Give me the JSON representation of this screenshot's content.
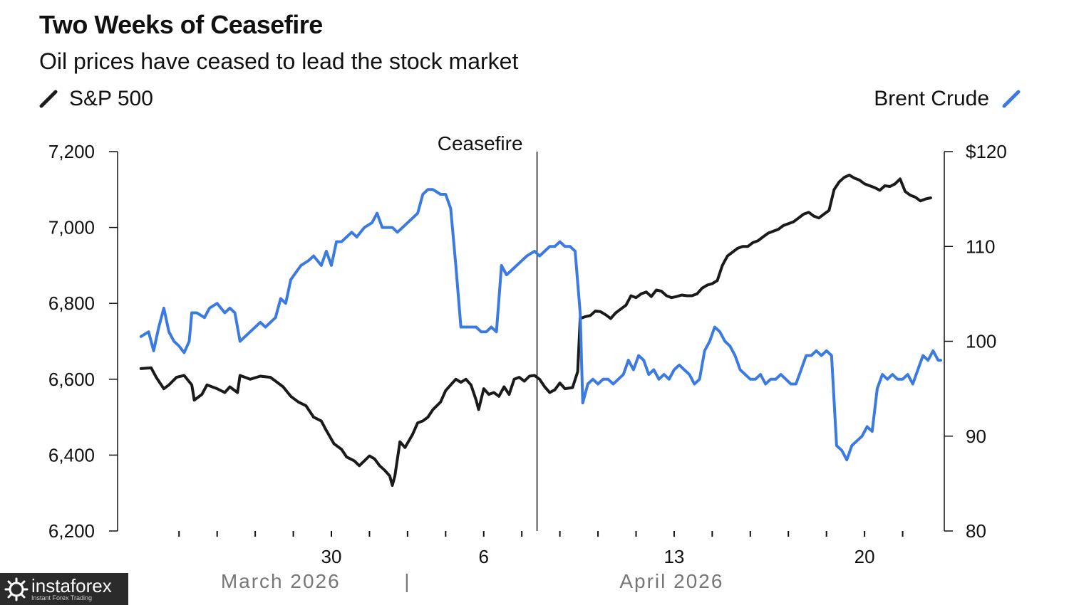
{
  "chart_data": {
    "type": "line",
    "title": "Two Weeks of Ceasefire",
    "subtitle": "Oil prices have ceased to lead the stock market",
    "annotation": "Ceasefire",
    "x_range": [
      0,
      32
    ],
    "annotation_x": 16.1,
    "left_axis": {
      "ylim": [
        6200,
        7200
      ],
      "ticks": [
        7200,
        7000,
        6800,
        6600,
        6400,
        6200
      ],
      "tick_labels": [
        "7,200",
        "7,000",
        "6,800",
        "6,600",
        "6,400",
        "6,200"
      ]
    },
    "right_axis": {
      "ylim": [
        80,
        120
      ],
      "ticks": [
        120,
        110,
        100,
        90,
        80
      ],
      "tick_labels": [
        "$120",
        "110",
        "100",
        "90",
        "80"
      ]
    },
    "x_ticks": [
      2,
      3.5,
      5,
      6.5,
      8,
      9.5,
      11,
      12.5,
      14,
      15.5,
      17,
      18.5,
      20,
      21.5,
      23,
      24.5,
      26,
      27.5,
      29,
      30.5
    ],
    "x_tick_labels": [
      {
        "x": 8,
        "label": "30"
      },
      {
        "x": 14,
        "label": "6"
      },
      {
        "x": 21.5,
        "label": "13"
      },
      {
        "x": 29,
        "label": "20"
      }
    ],
    "month_labels": [
      {
        "x": 6,
        "label": "March 2026"
      },
      {
        "x": 11,
        "label": "|"
      },
      {
        "x": 21.4,
        "label": "April 2026"
      }
    ],
    "series": [
      {
        "name": "S&P 500",
        "axis": "left",
        "color": "#1a1a1a",
        "points": [
          [
            0.5,
            6628
          ],
          [
            0.9,
            6630
          ],
          [
            1.1,
            6605
          ],
          [
            1.4,
            6575
          ],
          [
            1.6,
            6585
          ],
          [
            1.9,
            6605
          ],
          [
            2.2,
            6610
          ],
          [
            2.5,
            6585
          ],
          [
            2.6,
            6545
          ],
          [
            2.9,
            6560
          ],
          [
            3.1,
            6585
          ],
          [
            3.5,
            6575
          ],
          [
            3.8,
            6565
          ],
          [
            4.0,
            6580
          ],
          [
            4.3,
            6565
          ],
          [
            4.4,
            6610
          ],
          [
            4.8,
            6600
          ],
          [
            5.2,
            6608
          ],
          [
            5.6,
            6605
          ],
          [
            5.9,
            6590
          ],
          [
            6.1,
            6580
          ],
          [
            6.4,
            6555
          ],
          [
            6.7,
            6540
          ],
          [
            7.0,
            6530
          ],
          [
            7.3,
            6500
          ],
          [
            7.6,
            6490
          ],
          [
            7.8,
            6465
          ],
          [
            8.1,
            6430
          ],
          [
            8.4,
            6415
          ],
          [
            8.6,
            6395
          ],
          [
            8.9,
            6385
          ],
          [
            9.1,
            6372
          ],
          [
            9.3,
            6385
          ],
          [
            9.5,
            6398
          ],
          [
            9.7,
            6390
          ],
          [
            9.9,
            6372
          ],
          [
            10.1,
            6360
          ],
          [
            10.3,
            6345
          ],
          [
            10.4,
            6320
          ],
          [
            10.5,
            6345
          ],
          [
            10.7,
            6435
          ],
          [
            10.9,
            6420
          ],
          [
            11.2,
            6455
          ],
          [
            11.4,
            6485
          ],
          [
            11.6,
            6490
          ],
          [
            11.8,
            6500
          ],
          [
            12.0,
            6520
          ],
          [
            12.3,
            6540
          ],
          [
            12.5,
            6570
          ],
          [
            12.7,
            6585
          ],
          [
            12.9,
            6600
          ],
          [
            13.1,
            6592
          ],
          [
            13.3,
            6600
          ],
          [
            13.5,
            6585
          ],
          [
            13.7,
            6545
          ],
          [
            13.8,
            6520
          ],
          [
            14.0,
            6575
          ],
          [
            14.2,
            6560
          ],
          [
            14.4,
            6565
          ],
          [
            14.6,
            6555
          ],
          [
            14.8,
            6580
          ],
          [
            15.0,
            6560
          ],
          [
            15.2,
            6600
          ],
          [
            15.4,
            6605
          ],
          [
            15.6,
            6595
          ],
          [
            15.8,
            6608
          ],
          [
            16.0,
            6610
          ],
          [
            16.2,
            6600
          ],
          [
            16.4,
            6580
          ],
          [
            16.6,
            6565
          ],
          [
            16.8,
            6572
          ],
          [
            17.0,
            6590
          ],
          [
            17.2,
            6575
          ],
          [
            17.5,
            6578
          ],
          [
            17.7,
            6620
          ],
          [
            17.8,
            6760
          ],
          [
            18.0,
            6765
          ],
          [
            18.2,
            6768
          ],
          [
            18.4,
            6780
          ],
          [
            18.6,
            6778
          ],
          [
            18.8,
            6770
          ],
          [
            19.0,
            6760
          ],
          [
            19.2,
            6775
          ],
          [
            19.4,
            6785
          ],
          [
            19.6,
            6795
          ],
          [
            19.8,
            6820
          ],
          [
            20.0,
            6815
          ],
          [
            20.2,
            6825
          ],
          [
            20.4,
            6830
          ],
          [
            20.6,
            6818
          ],
          [
            20.8,
            6835
          ],
          [
            21.0,
            6832
          ],
          [
            21.2,
            6820
          ],
          [
            21.4,
            6815
          ],
          [
            21.6,
            6818
          ],
          [
            21.8,
            6822
          ],
          [
            22.0,
            6820
          ],
          [
            22.2,
            6820
          ],
          [
            22.4,
            6825
          ],
          [
            22.6,
            6840
          ],
          [
            22.8,
            6848
          ],
          [
            23.0,
            6852
          ],
          [
            23.2,
            6860
          ],
          [
            23.4,
            6900
          ],
          [
            23.6,
            6925
          ],
          [
            23.8,
            6935
          ],
          [
            24.0,
            6945
          ],
          [
            24.2,
            6950
          ],
          [
            24.4,
            6950
          ],
          [
            24.6,
            6960
          ],
          [
            24.8,
            6965
          ],
          [
            25.0,
            6975
          ],
          [
            25.2,
            6985
          ],
          [
            25.4,
            6990
          ],
          [
            25.6,
            6995
          ],
          [
            25.8,
            7005
          ],
          [
            26.0,
            7010
          ],
          [
            26.2,
            7015
          ],
          [
            26.4,
            7025
          ],
          [
            26.6,
            7035
          ],
          [
            26.8,
            7040
          ],
          [
            27.0,
            7030
          ],
          [
            27.2,
            7025
          ],
          [
            27.4,
            7035
          ],
          [
            27.6,
            7045
          ],
          [
            27.8,
            7100
          ],
          [
            28.0,
            7120
          ],
          [
            28.2,
            7132
          ],
          [
            28.4,
            7138
          ],
          [
            28.6,
            7130
          ],
          [
            28.8,
            7125
          ],
          [
            29.0,
            7115
          ],
          [
            29.2,
            7110
          ],
          [
            29.4,
            7105
          ],
          [
            29.6,
            7098
          ],
          [
            29.8,
            7110
          ],
          [
            30.0,
            7108
          ],
          [
            30.2,
            7115
          ],
          [
            30.4,
            7128
          ],
          [
            30.6,
            7095
          ],
          [
            30.8,
            7085
          ],
          [
            31.0,
            7080
          ],
          [
            31.2,
            7070
          ],
          [
            31.4,
            7075
          ],
          [
            31.6,
            7078
          ]
        ]
      },
      {
        "name": "Brent Crude",
        "axis": "right",
        "color": "#3b7ae0",
        "points": [
          [
            0.5,
            100.5
          ],
          [
            0.8,
            101
          ],
          [
            1.0,
            99
          ],
          [
            1.2,
            101.5
          ],
          [
            1.4,
            103.5
          ],
          [
            1.6,
            101
          ],
          [
            1.8,
            100
          ],
          [
            2.0,
            99.5
          ],
          [
            2.2,
            98.8
          ],
          [
            2.4,
            100
          ],
          [
            2.5,
            103
          ],
          [
            2.7,
            103
          ],
          [
            3.0,
            102.5
          ],
          [
            3.2,
            103.5
          ],
          [
            3.5,
            104
          ],
          [
            3.8,
            103
          ],
          [
            4.0,
            103.5
          ],
          [
            4.2,
            103
          ],
          [
            4.4,
            100
          ],
          [
            4.8,
            101
          ],
          [
            5.2,
            102
          ],
          [
            5.4,
            101.5
          ],
          [
            5.8,
            102.5
          ],
          [
            6.0,
            104.5
          ],
          [
            6.2,
            104
          ],
          [
            6.4,
            106.5
          ],
          [
            6.8,
            108
          ],
          [
            7.1,
            108.5
          ],
          [
            7.3,
            109
          ],
          [
            7.6,
            108
          ],
          [
            7.8,
            109.5
          ],
          [
            8.0,
            108
          ],
          [
            8.2,
            110.5
          ],
          [
            8.4,
            110.5
          ],
          [
            8.6,
            111
          ],
          [
            8.8,
            111.5
          ],
          [
            9.0,
            111
          ],
          [
            9.3,
            112
          ],
          [
            9.6,
            112.5
          ],
          [
            9.8,
            113.5
          ],
          [
            10.0,
            112
          ],
          [
            10.4,
            112
          ],
          [
            10.6,
            111.5
          ],
          [
            10.8,
            112
          ],
          [
            11.0,
            112.5
          ],
          [
            11.2,
            113
          ],
          [
            11.4,
            113.5
          ],
          [
            11.6,
            115.5
          ],
          [
            11.8,
            116
          ],
          [
            12.0,
            116
          ],
          [
            12.3,
            115.5
          ],
          [
            12.5,
            115.5
          ],
          [
            12.7,
            114
          ],
          [
            12.9,
            108
          ],
          [
            13.1,
            101.5
          ],
          [
            13.3,
            101.5
          ],
          [
            13.5,
            101.5
          ],
          [
            13.7,
            101.5
          ],
          [
            13.9,
            101
          ],
          [
            14.1,
            101
          ],
          [
            14.3,
            101.5
          ],
          [
            14.5,
            101
          ],
          [
            14.7,
            108
          ],
          [
            14.9,
            107
          ],
          [
            15.1,
            107.5
          ],
          [
            15.3,
            108
          ],
          [
            15.5,
            108.5
          ],
          [
            15.7,
            109
          ],
          [
            16.0,
            109.5
          ],
          [
            16.2,
            109
          ],
          [
            16.4,
            109.5
          ],
          [
            16.6,
            110
          ],
          [
            16.8,
            110
          ],
          [
            17.0,
            110.5
          ],
          [
            17.2,
            110
          ],
          [
            17.4,
            110
          ],
          [
            17.6,
            109.5
          ],
          [
            17.8,
            103
          ],
          [
            17.9,
            93.5
          ],
          [
            18.1,
            95.5
          ],
          [
            18.3,
            96
          ],
          [
            18.5,
            95.5
          ],
          [
            18.7,
            96
          ],
          [
            18.9,
            96
          ],
          [
            19.1,
            95.5
          ],
          [
            19.3,
            96
          ],
          [
            19.5,
            96.5
          ],
          [
            19.7,
            98
          ],
          [
            19.9,
            97
          ],
          [
            20.1,
            98.5
          ],
          [
            20.3,
            98
          ],
          [
            20.5,
            96.5
          ],
          [
            20.7,
            97
          ],
          [
            20.9,
            96
          ],
          [
            21.1,
            96.5
          ],
          [
            21.3,
            96
          ],
          [
            21.5,
            97
          ],
          [
            21.7,
            97.5
          ],
          [
            21.9,
            97
          ],
          [
            22.1,
            96.5
          ],
          [
            22.3,
            95.5
          ],
          [
            22.5,
            96
          ],
          [
            22.7,
            99
          ],
          [
            22.9,
            100
          ],
          [
            23.1,
            101.5
          ],
          [
            23.3,
            101
          ],
          [
            23.5,
            100
          ],
          [
            23.7,
            99.5
          ],
          [
            23.9,
            98.5
          ],
          [
            24.1,
            97
          ],
          [
            24.3,
            96.5
          ],
          [
            24.5,
            96
          ],
          [
            24.7,
            96
          ],
          [
            24.9,
            96.5
          ],
          [
            25.1,
            95.5
          ],
          [
            25.3,
            96
          ],
          [
            25.5,
            96
          ],
          [
            25.7,
            96.5
          ],
          [
            25.9,
            96
          ],
          [
            26.1,
            95.5
          ],
          [
            26.3,
            95.5
          ],
          [
            26.5,
            97
          ],
          [
            26.7,
            98.5
          ],
          [
            26.9,
            98.5
          ],
          [
            27.1,
            99
          ],
          [
            27.3,
            98.5
          ],
          [
            27.5,
            99
          ],
          [
            27.7,
            98.5
          ],
          [
            27.9,
            89
          ],
          [
            28.1,
            88.5
          ],
          [
            28.3,
            87.5
          ],
          [
            28.5,
            89
          ],
          [
            28.7,
            89.5
          ],
          [
            28.9,
            90
          ],
          [
            29.1,
            91
          ],
          [
            29.3,
            90.5
          ],
          [
            29.5,
            95
          ],
          [
            29.7,
            96.5
          ],
          [
            29.9,
            96
          ],
          [
            30.1,
            96.5
          ],
          [
            30.3,
            96
          ],
          [
            30.5,
            96
          ],
          [
            30.7,
            96.5
          ],
          [
            30.9,
            95.5
          ],
          [
            31.1,
            97
          ],
          [
            31.3,
            98.5
          ],
          [
            31.5,
            98
          ],
          [
            31.7,
            99
          ],
          [
            31.9,
            98
          ],
          [
            32.0,
            98
          ]
        ]
      }
    ]
  },
  "watermark": {
    "brand": "instaforex",
    "tagline": "Instant Forex Trading"
  }
}
